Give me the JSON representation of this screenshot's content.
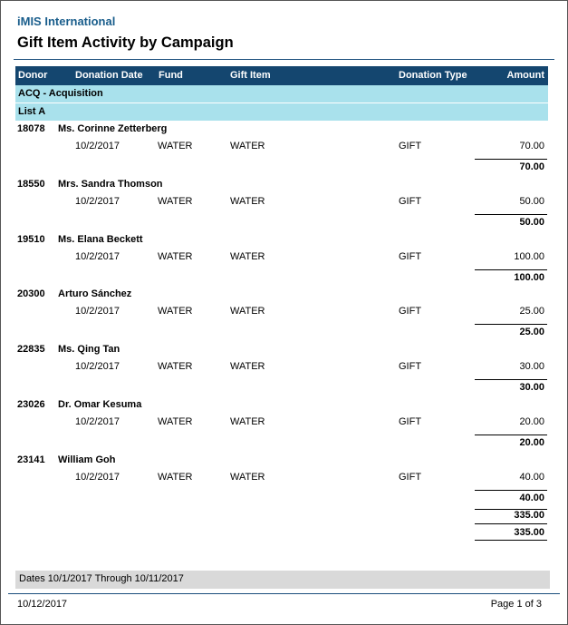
{
  "report": {
    "company": "iMIS International",
    "title": "Gift Item Activity by Campaign"
  },
  "columns": {
    "donor": "Donor",
    "donation_date": "Donation Date",
    "fund": "Fund",
    "gift_item": "Gift Item",
    "donation_type": "Donation Type",
    "amount": "Amount"
  },
  "groups": {
    "campaign": "ACQ - Acquisition",
    "list": "List A"
  },
  "donors": [
    {
      "id": "18078",
      "name": "Ms. Corinne Zetterberg",
      "date": "10/2/2017",
      "fund": "WATER",
      "gift_item": "WATER",
      "type": "GIFT",
      "amount": "70.00",
      "subtotal": "70.00"
    },
    {
      "id": "18550",
      "name": "Mrs. Sandra Thomson",
      "date": "10/2/2017",
      "fund": "WATER",
      "gift_item": "WATER",
      "type": "GIFT",
      "amount": "50.00",
      "subtotal": "50.00"
    },
    {
      "id": "19510",
      "name": "Ms. Elana Beckett",
      "date": "10/2/2017",
      "fund": "WATER",
      "gift_item": "WATER",
      "type": "GIFT",
      "amount": "100.00",
      "subtotal": "100.00"
    },
    {
      "id": "20300",
      "name": "Arturo Sánchez",
      "date": "10/2/2017",
      "fund": "WATER",
      "gift_item": "WATER",
      "type": "GIFT",
      "amount": "25.00",
      "subtotal": "25.00"
    },
    {
      "id": "22835",
      "name": "Ms. Qing Tan",
      "date": "10/2/2017",
      "fund": "WATER",
      "gift_item": "WATER",
      "type": "GIFT",
      "amount": "30.00",
      "subtotal": "30.00"
    },
    {
      "id": "23026",
      "name": "Dr. Omar Kesuma",
      "date": "10/2/2017",
      "fund": "WATER",
      "gift_item": "WATER",
      "type": "GIFT",
      "amount": "20.00",
      "subtotal": "20.00"
    },
    {
      "id": "23141",
      "name": "William Goh",
      "date": "10/2/2017",
      "fund": "WATER",
      "gift_item": "WATER",
      "type": "GIFT",
      "amount": "40.00",
      "subtotal": "40.00"
    }
  ],
  "totals": {
    "list_total": "335.00",
    "campaign_total": "335.00"
  },
  "footer": {
    "dates": "Dates 10/1/2017 Through 10/11/2017",
    "print_date": "10/12/2017",
    "page": "Page 1 of  3"
  }
}
